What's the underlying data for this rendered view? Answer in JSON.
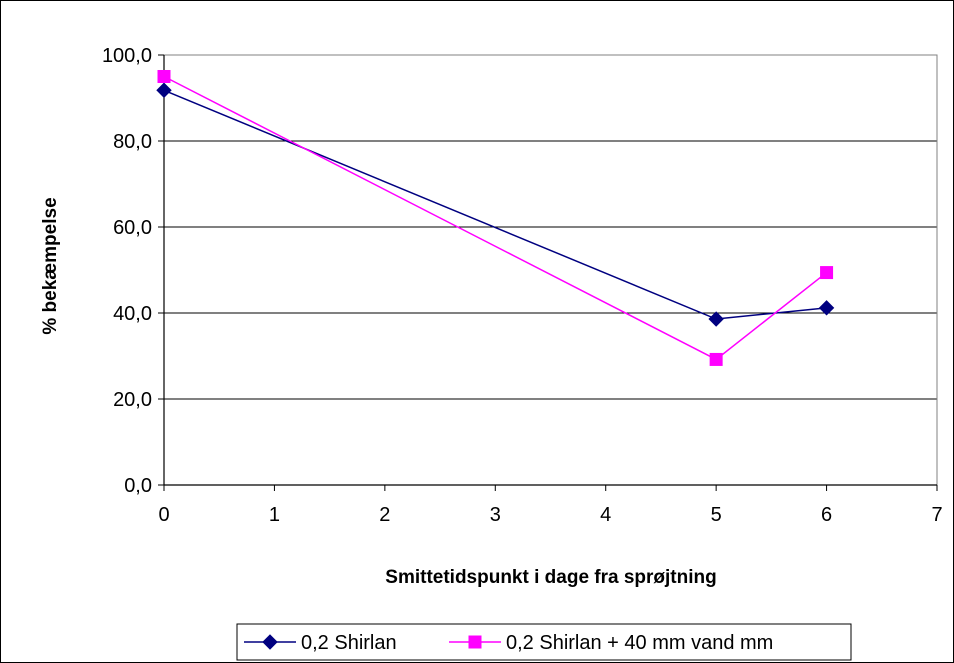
{
  "chart_data": {
    "type": "line",
    "title": "",
    "xlabel": "Smittetidspunkt i dage  fra sprøjtning",
    "ylabel": "% bekæmpelse",
    "xlim": [
      0,
      7
    ],
    "ylim": [
      0,
      100
    ],
    "x_ticks": [
      "0",
      "1",
      "2",
      "3",
      "4",
      "5",
      "6",
      "7"
    ],
    "y_ticks": [
      "0,0",
      "20,0",
      "40,0",
      "60,0",
      "80,0",
      "100,0"
    ],
    "grid": "horizontal",
    "legend_position": "bottom",
    "series": [
      {
        "name": "0,2 Shirlan",
        "color": "#000080",
        "marker": "diamond",
        "points": [
          {
            "x": 0,
            "y": 91.8
          },
          {
            "x": 5,
            "y": 38.6
          },
          {
            "x": 6,
            "y": 41.2
          }
        ]
      },
      {
        "name": "0,2 Shirlan + 40 mm vand mm",
        "color": "#FF00FF",
        "marker": "square",
        "points": [
          {
            "x": 0,
            "y": 95.0
          },
          {
            "x": 5,
            "y": 29.2
          },
          {
            "x": 6,
            "y": 49.4
          }
        ]
      }
    ]
  }
}
